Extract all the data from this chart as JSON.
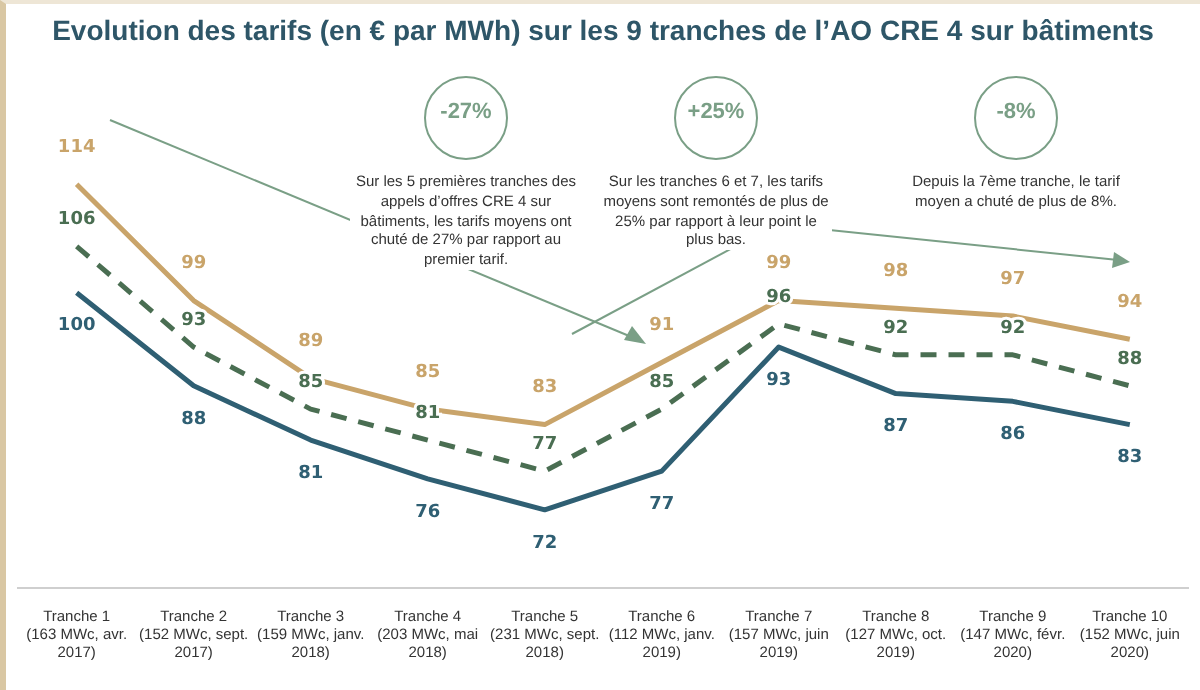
{
  "chart_data": {
    "type": "line",
    "title": "Evolution des tarifs (en € par MWh) sur les 9 tranches de l’AO CRE 4 sur bâtiments",
    "categories": [
      "Tranche 1\n(163 MWc, avr.\n2017)",
      "Tranche 2\n(152 MWc, sept.\n2017)",
      "Tranche 3\n(159 MWc, janv.\n2018)",
      "Tranche 4\n(203 MWc, mai\n2018)",
      "Tranche 5\n(231 MWc, sept.\n2018)",
      "Tranche 6\n(112 MWc, janv.\n2019)",
      "Tranche 7\n(157 MWc, juin\n2019)",
      "Tranche 8\n(127 MWc, oct.\n2019)",
      "Tranche 9\n(147 MWc, févr.\n2020)",
      "Tranche 10\n(152 MWc, juin\n2020)"
    ],
    "series": [
      {
        "color": "#c9a46a",
        "values": [
          114,
          99,
          89,
          85,
          83,
          91,
          99,
          98,
          97,
          94
        ]
      },
      {
        "color": "#4a6e52",
        "line_style": "dashed",
        "values": [
          106,
          93,
          85,
          81,
          77,
          85,
          96,
          92,
          92,
          88
        ]
      },
      {
        "color": "#2f5f73",
        "values": [
          100,
          88,
          81,
          76,
          72,
          77,
          93,
          87,
          86,
          83
        ]
      }
    ],
    "data_labels": true,
    "grid": false,
    "legend": false,
    "marker": "none",
    "tick_labels": "x",
    "annotations": [
      "-27%",
      "Sur les 5 premières tranches des appels d’offres CRE 4 sur bâtiments, les tarifs moyens ont chuté de 27% par rapport au premier tarif.",
      "+25%",
      "Sur les tranches 6 et 7, les tarifs moyens sont remontés de plus de 25% par rapport à leur point le plus bas.",
      "-8%",
      "Depuis la 7ème tranche, le tarif moyen a chuté de plus de 8%."
    ]
  }
}
